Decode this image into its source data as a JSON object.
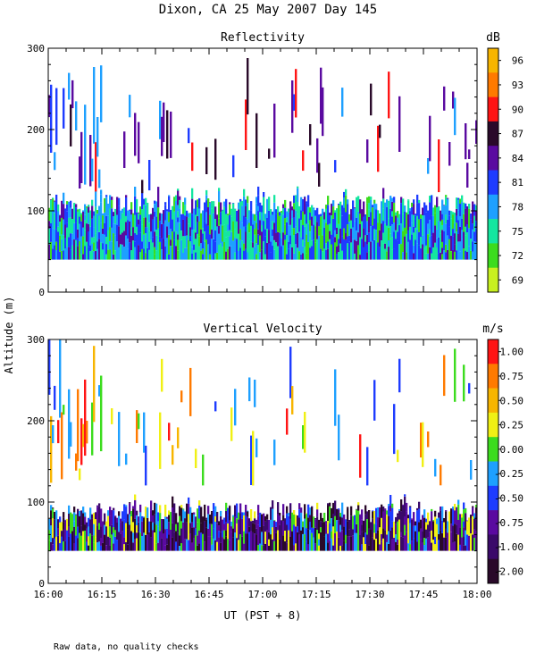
{
  "title": "Dixon, CA 25 May 2007  Day 145",
  "ylabel": "Altitude (m)",
  "xlabel": "UT  (PST + 8)",
  "footnote": "Raw data, no quality checks",
  "xticks": [
    "16:00",
    "16:15",
    "16:30",
    "16:45",
    "17:00",
    "17:15",
    "17:30",
    "17:45",
    "18:00"
  ],
  "chart_data": [
    {
      "type": "heatmap",
      "title": "Reflectivity",
      "colorbar_unit": "dB",
      "colorbar_labels": [
        "96",
        "93",
        "90",
        "87",
        "84",
        "81",
        "78",
        "75",
        "72",
        "69"
      ],
      "colorbar_colors": [
        "#f7b500",
        "#ff7a00",
        "#ff1414",
        "#2a0a2a",
        "#5a0aa0",
        "#1e3cff",
        "#1ea0ff",
        "#14e6a0",
        "#3cdc1e",
        "#c8f020"
      ],
      "xlim": [
        "16:00",
        "18:00"
      ],
      "ylim": [
        0,
        300
      ],
      "yticks": [
        "0",
        "100",
        "200",
        "300"
      ],
      "dense_layer_m": [
        40,
        120
      ],
      "dominant_values_dB": [
        75,
        78,
        81
      ],
      "description_values": [
        {
          "level": "low layer",
          "altitude_range_m": [
            40,
            120
          ],
          "typical_dB": "75-81"
        },
        {
          "level": "upper echoes",
          "altitude_range_m": [
            120,
            280
          ],
          "typical_dB": "81-93"
        }
      ]
    },
    {
      "type": "heatmap",
      "title": "Vertical Velocity",
      "colorbar_unit": "m/s",
      "colorbar_labels": [
        "1.00",
        "0.75",
        "0.50",
        "0.25",
        "0.00",
        "-0.25",
        "-0.50",
        "-0.75",
        "-1.00",
        "-2.00"
      ],
      "colorbar_colors": [
        "#ff1414",
        "#ff7a00",
        "#f7b500",
        "#f0f014",
        "#3cdc1e",
        "#1ea0ff",
        "#1e3cff",
        "#5a0aa0",
        "#3a0a6a",
        "#2a0a2a"
      ],
      "xlim": [
        "16:00",
        "18:00"
      ],
      "ylim": [
        0,
        300
      ],
      "yticks": [
        "0",
        "100",
        "200",
        "300"
      ],
      "dense_layer_m": [
        40,
        100
      ],
      "dominant_values_ms": [
        -1.0,
        -0.75
      ]
    }
  ]
}
